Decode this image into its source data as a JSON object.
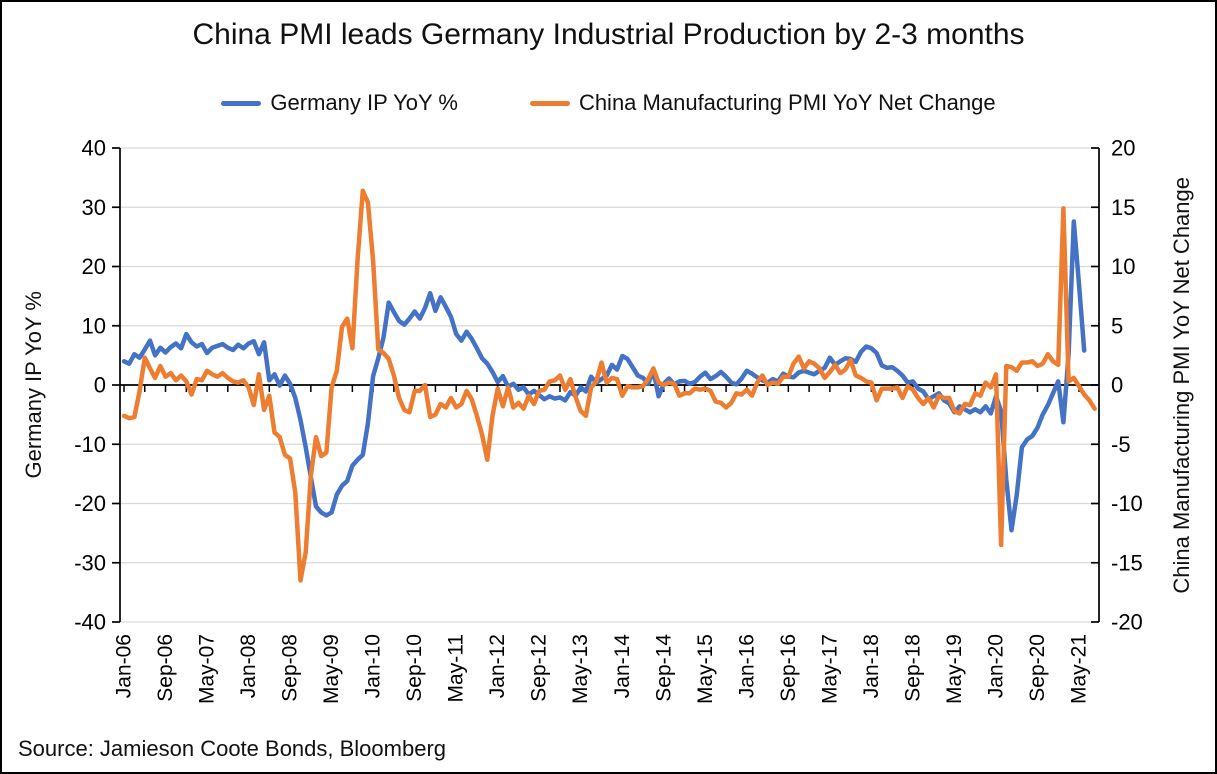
{
  "style": {
    "background": "#FFFFFF",
    "figure_border": "#000000",
    "gridline_color": "#D9D9D9",
    "axis_color": "#000000",
    "text_color": "#111111"
  },
  "source_text": "Source: Jamieson Coote Bonds, Bloomberg",
  "chart_data": {
    "type": "line",
    "title": "China PMI leads Germany Industrial Production by 2-3 months",
    "legend_position": "top",
    "grid": "horizontal",
    "x_start": "Jan-06",
    "x_step_months": 1,
    "x_tick_labels": [
      "Jan-06",
      "Sep-06",
      "May-07",
      "Jan-08",
      "Sep-08",
      "May-09",
      "Jan-10",
      "Sep-10",
      "May-11",
      "Jan-12",
      "Sep-12",
      "May-13",
      "Jan-14",
      "Sep-14",
      "May-15",
      "Jan-16",
      "Sep-16",
      "May-17",
      "Jan-18",
      "Sep-18",
      "May-19",
      "Jan-20",
      "Sep-20",
      "May-21"
    ],
    "x_tick_label_interval_months": 8,
    "x_minor_tick_interval_months": 4,
    "left_axis": {
      "label": "Germany IP YoY %",
      "min": -40,
      "max": 40,
      "tick_step": 10,
      "ticks": [
        40,
        30,
        20,
        10,
        0,
        -10,
        -20,
        -30,
        -40
      ]
    },
    "right_axis": {
      "label": "China Manufacturing PMI YoY Net Change",
      "min": -20,
      "max": 20,
      "tick_step": 5,
      "ticks": [
        20,
        15,
        10,
        5,
        0,
        -5,
        -10,
        -15,
        -20
      ]
    },
    "series": [
      {
        "name": "Germany IP YoY %",
        "axis": "left",
        "color": "#4472C4",
        "values": [
          4.0,
          3.6,
          5.2,
          4.6,
          6.0,
          7.5,
          5.0,
          6.3,
          5.5,
          6.4,
          7.0,
          6.2,
          8.6,
          7.2,
          6.5,
          6.9,
          5.4,
          6.3,
          6.6,
          6.9,
          6.3,
          5.9,
          6.8,
          6.2,
          7.0,
          7.4,
          5.2,
          7.2,
          0.8,
          1.8,
          -0.1,
          1.6,
          0.2,
          -2.2,
          -5.9,
          -10.5,
          -15.5,
          -20.5,
          -21.5,
          -22.0,
          -21.5,
          -18.5,
          -17.0,
          -16.2,
          -13.6,
          -12.6,
          -11.8,
          -6.5,
          1.5,
          4.5,
          8.0,
          13.9,
          12.3,
          10.8,
          10.2,
          11.2,
          12.4,
          11.2,
          13.0,
          15.5,
          12.5,
          14.8,
          13.2,
          11.5,
          8.6,
          7.5,
          9.0,
          7.8,
          6.2,
          4.5,
          3.6,
          2.2,
          0.5,
          1.5,
          -0.3,
          0.2,
          -0.8,
          -0.4,
          -1.6,
          -1.0,
          -1.7,
          -2.4,
          -1.9,
          -2.3,
          -2.1,
          -2.6,
          -1.2,
          -1.8,
          -0.4,
          -1.1,
          1.4,
          0.4,
          1.0,
          1.6,
          3.4,
          2.6,
          4.9,
          4.4,
          3.0,
          1.6,
          1.2,
          0.2,
          2.4,
          -1.9,
          0.2,
          1.1,
          0.1,
          0.6,
          0.7,
          0.2,
          0.5,
          1.4,
          2.1,
          1.0,
          1.5,
          2.2,
          1.4,
          0.4,
          0.1,
          1.1,
          2.4,
          1.9,
          1.3,
          0.8,
          0.4,
          1.0,
          0.6,
          1.9,
          1.4,
          1.3,
          2.1,
          2.4,
          2.1,
          1.8,
          2.4,
          2.9,
          4.6,
          3.4,
          4.0,
          4.5,
          4.4,
          3.9,
          5.6,
          6.5,
          6.2,
          5.4,
          3.3,
          2.9,
          3.0,
          2.4,
          1.6,
          0.4,
          0.6,
          -0.6,
          -1.1,
          -2.4,
          -1.9,
          -1.4,
          -2.6,
          -3.1,
          -4.6,
          -3.6,
          -4.1,
          -4.6,
          -4.1,
          -4.6,
          -3.6,
          -4.8,
          -1.9,
          -4.4,
          -16.0,
          -24.5,
          -18.6,
          -10.5,
          -9.2,
          -8.6,
          -7.2,
          -5.0,
          -3.4,
          -1.4,
          0.6,
          -6.3,
          5.2,
          27.6,
          17.0,
          5.8,
          null,
          null
        ]
      },
      {
        "name": "China Manufacturing PMI YoY Net Change",
        "axis": "right",
        "color": "#ED7D31",
        "values": [
          -2.6,
          -2.8,
          -2.7,
          -0.5,
          2.3,
          1.4,
          0.6,
          1.6,
          0.7,
          1.0,
          0.4,
          0.8,
          0.3,
          -0.8,
          0.5,
          0.4,
          1.2,
          0.9,
          0.7,
          1.0,
          0.6,
          0.3,
          0.2,
          0.4,
          -0.2,
          -1.7,
          0.9,
          -2.1,
          -0.9,
          -4.0,
          -4.4,
          -5.9,
          -6.2,
          -9.1,
          -16.5,
          -14.1,
          -7.7,
          -4.4,
          -6.0,
          -5.7,
          -0.2,
          1.2,
          4.9,
          5.6,
          3.1,
          10.6,
          16.4,
          15.4,
          10.5,
          3.0,
          2.7,
          2.2,
          0.8,
          -1.1,
          -2.1,
          -2.3,
          -0.5,
          -0.5,
          0.0,
          -2.7,
          -2.5,
          -1.6,
          -1.9,
          -1.1,
          -1.9,
          -1.6,
          -0.5,
          -1.2,
          -2.6,
          -4.2,
          -6.3,
          -2.6,
          -0.3,
          -1.8,
          -0.2,
          -1.9,
          -1.5,
          -2.0,
          -0.9,
          -1.6,
          -0.5,
          -0.4,
          0.3,
          0.4,
          0.8,
          -0.4,
          0.5,
          -1.0,
          -2.2,
          -2.6,
          -0.2,
          0.3,
          1.9,
          0.2,
          0.6,
          0.5,
          -0.9,
          -0.1,
          -0.2,
          -0.2,
          -0.1,
          0.5,
          1.4,
          0.2,
          0.0,
          0.2,
          0.1,
          -0.9,
          -0.7,
          -0.7,
          -0.3,
          -0.4,
          -0.3,
          -0.5,
          -1.4,
          -1.5,
          -1.9,
          -1.5,
          -0.7,
          -0.8,
          -0.4,
          -0.9,
          0.2,
          0.8,
          0.0,
          0.2,
          0.1,
          0.7,
          0.7,
          1.8,
          2.4,
          1.4,
          2.0,
          1.8,
          1.4,
          0.6,
          1.1,
          1.7,
          1.0,
          1.3,
          2.1,
          0.8,
          0.6,
          0.3,
          0.2,
          -1.3,
          -0.3,
          -0.3,
          -0.3,
          -0.2,
          -1.1,
          -0.1,
          -0.4,
          -1.1,
          -1.6,
          -1.1,
          -1.9,
          -0.9,
          -1.1,
          -1.1,
          -2.2,
          -2.4,
          -1.6,
          -1.7,
          -0.7,
          -0.9,
          0.2,
          -0.2,
          0.9,
          -13.5,
          1.6,
          1.5,
          1.2,
          1.9,
          1.9,
          2.0,
          1.6,
          1.8,
          2.6,
          2.0,
          1.7,
          14.9,
          0.3,
          0.6,
          -0.1,
          -0.8,
          -1.3,
          -2.0
        ]
      }
    ]
  }
}
